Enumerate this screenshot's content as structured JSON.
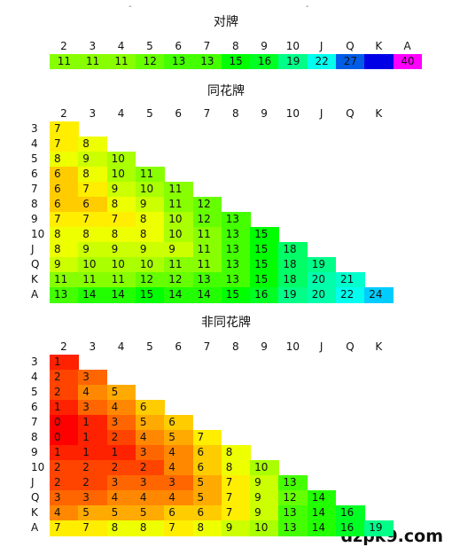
{
  "watermark": "dzpk9.com",
  "decor": {
    "dash": "-"
  },
  "ranks_cols": [
    "2",
    "3",
    "4",
    "5",
    "6",
    "7",
    "8",
    "9",
    "10",
    "J",
    "Q",
    "K",
    "A"
  ],
  "ranks_rows": [
    "3",
    "4",
    "5",
    "6",
    "7",
    "8",
    "9",
    "10",
    "J",
    "Q",
    "K",
    "A"
  ],
  "chart_data": [
    {
      "type": "heatmap",
      "title": "对牌",
      "columns": [
        "2",
        "3",
        "4",
        "5",
        "6",
        "7",
        "8",
        "9",
        "10",
        "J",
        "Q",
        "K",
        "A"
      ],
      "values": [
        11,
        11,
        11,
        12,
        13,
        13,
        15,
        16,
        19,
        22,
        27,
        null,
        40
      ],
      "blank_value_note": ""
    },
    {
      "type": "heatmap",
      "title": "同花牌",
      "columns": [
        "2",
        "3",
        "4",
        "5",
        "6",
        "7",
        "8",
        "9",
        "10",
        "J",
        "Q",
        "K"
      ],
      "rows": [
        "3",
        "4",
        "5",
        "6",
        "7",
        "8",
        "9",
        "10",
        "J",
        "Q",
        "K",
        "A"
      ],
      "values": [
        [
          7
        ],
        [
          7,
          8
        ],
        [
          8,
          9,
          10
        ],
        [
          6,
          8,
          10,
          11
        ],
        [
          6,
          7,
          9,
          10,
          11
        ],
        [
          6,
          6,
          8,
          9,
          11,
          12
        ],
        [
          7,
          7,
          7,
          8,
          10,
          12,
          13
        ],
        [
          8,
          8,
          8,
          8,
          10,
          11,
          13,
          15
        ],
        [
          8,
          9,
          9,
          9,
          9,
          11,
          13,
          15,
          18
        ],
        [
          9,
          10,
          10,
          10,
          11,
          11,
          13,
          15,
          18,
          19
        ],
        [
          11,
          11,
          11,
          12,
          12,
          13,
          13,
          15,
          18,
          20,
          21
        ],
        [
          13,
          14,
          14,
          15,
          14,
          14,
          15,
          16,
          19,
          20,
          22,
          24
        ]
      ]
    },
    {
      "type": "heatmap",
      "title": "非同花牌",
      "columns": [
        "2",
        "3",
        "4",
        "5",
        "6",
        "7",
        "8",
        "9",
        "10",
        "J",
        "Q",
        "K"
      ],
      "rows": [
        "3",
        "4",
        "5",
        "6",
        "7",
        "8",
        "9",
        "10",
        "J",
        "Q",
        "K",
        "A"
      ],
      "values": [
        [
          1
        ],
        [
          2,
          3
        ],
        [
          2,
          4,
          5
        ],
        [
          1,
          3,
          4,
          6
        ],
        [
          0,
          1,
          3,
          5,
          6
        ],
        [
          0,
          1,
          2,
          4,
          5,
          7
        ],
        [
          1,
          1,
          1,
          3,
          4,
          6,
          8
        ],
        [
          2,
          2,
          2,
          2,
          4,
          6,
          8,
          10
        ],
        [
          2,
          2,
          3,
          3,
          3,
          5,
          7,
          9,
          13
        ],
        [
          3,
          3,
          4,
          4,
          4,
          5,
          7,
          9,
          12,
          14
        ],
        [
          4,
          5,
          5,
          5,
          6,
          6,
          7,
          9,
          13,
          14,
          16
        ],
        [
          7,
          7,
          8,
          8,
          7,
          8,
          9,
          10,
          13,
          14,
          16,
          19
        ]
      ]
    }
  ]
}
